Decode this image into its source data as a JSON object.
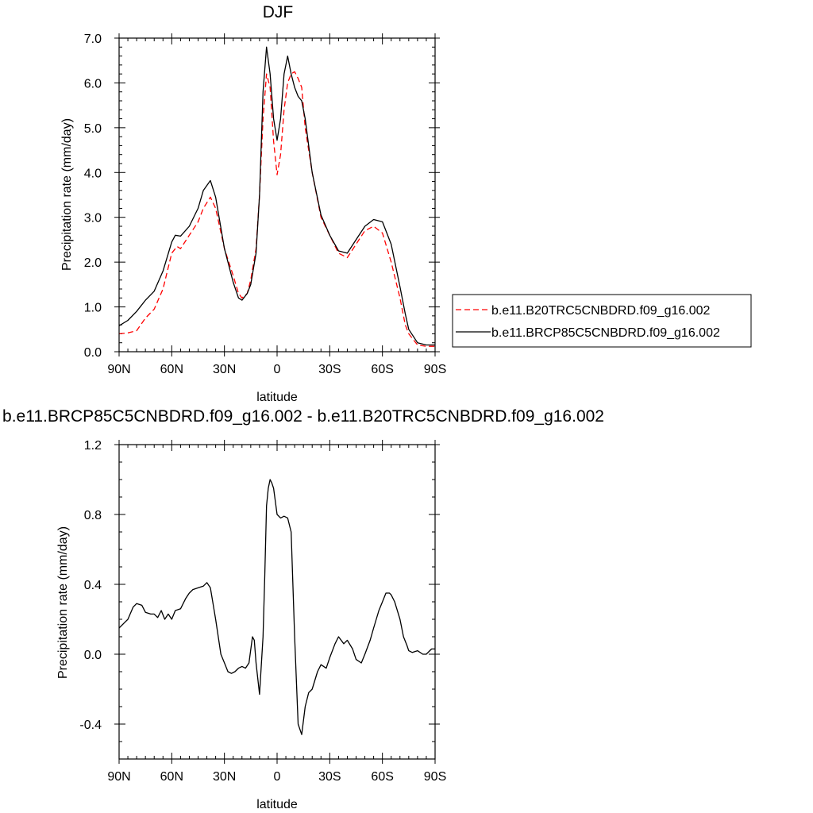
{
  "chart_data": [
    {
      "type": "line",
      "title": "DJF",
      "xlabel": "latitude",
      "ylabel": "Precipitation rate (mm/day)",
      "xlim": [
        90,
        -90
      ],
      "ylim": [
        0,
        7
      ],
      "x_ticks": [
        {
          "value": 90,
          "label": "90N"
        },
        {
          "value": 60,
          "label": "60N"
        },
        {
          "value": 30,
          "label": "30N"
        },
        {
          "value": 0,
          "label": "0"
        },
        {
          "value": -30,
          "label": "30S"
        },
        {
          "value": -60,
          "label": "60S"
        },
        {
          "value": -90,
          "label": "90S"
        }
      ],
      "y_ticks": [
        {
          "value": 0,
          "label": "0.0"
        },
        {
          "value": 1,
          "label": "1.0"
        },
        {
          "value": 2,
          "label": "2.0"
        },
        {
          "value": 3,
          "label": "3.0"
        },
        {
          "value": 4,
          "label": "4.0"
        },
        {
          "value": 5,
          "label": "5.0"
        },
        {
          "value": 6,
          "label": "6.0"
        },
        {
          "value": 7,
          "label": "7.0"
        }
      ],
      "grid": false,
      "legend_position": "right",
      "series": [
        {
          "name": "b.e11.B20TRC5CNBDRD.f09_g16.002",
          "color": "#ff0000",
          "dash": true,
          "x": [
            90,
            85,
            80,
            75,
            70,
            65,
            60,
            57,
            55,
            50,
            45,
            42,
            38,
            35,
            30,
            25,
            22,
            20,
            17,
            15,
            12,
            10,
            8,
            6,
            4,
            2,
            0,
            -2,
            -4,
            -6,
            -8,
            -10,
            -12,
            -14,
            -16,
            -18,
            -20,
            -25,
            -30,
            -35,
            -40,
            -45,
            -50,
            -55,
            -60,
            -65,
            -70,
            -73,
            -75,
            -80,
            -85,
            -90
          ],
          "y": [
            0.4,
            0.42,
            0.47,
            0.75,
            0.95,
            1.4,
            2.2,
            2.35,
            2.3,
            2.6,
            2.9,
            3.2,
            3.45,
            3.2,
            2.3,
            1.7,
            1.3,
            1.2,
            1.3,
            1.6,
            2.3,
            3.5,
            5.2,
            6.2,
            5.9,
            4.7,
            3.95,
            4.4,
            5.4,
            6.0,
            6.2,
            6.25,
            6.1,
            5.9,
            5.0,
            4.5,
            4.0,
            3.0,
            2.6,
            2.2,
            2.1,
            2.4,
            2.7,
            2.8,
            2.65,
            2.0,
            1.2,
            0.6,
            0.4,
            0.15,
            0.12,
            0.12
          ]
        },
        {
          "name": "b.e11.BRCP85C5CNBDRD.f09_g16.002",
          "color": "#000000",
          "dash": false,
          "x": [
            90,
            85,
            80,
            75,
            70,
            65,
            60,
            58,
            55,
            50,
            45,
            42,
            38,
            35,
            30,
            25,
            22,
            20,
            17,
            15,
            12,
            10,
            8,
            6,
            4,
            2,
            0,
            -2,
            -4,
            -6,
            -8,
            -10,
            -12,
            -14,
            -16,
            -18,
            -20,
            -25,
            -30,
            -35,
            -40,
            -45,
            -50,
            -55,
            -60,
            -65,
            -70,
            -73,
            -75,
            -80,
            -85,
            -90
          ],
          "y": [
            0.58,
            0.7,
            0.9,
            1.15,
            1.35,
            1.8,
            2.45,
            2.6,
            2.58,
            2.8,
            3.2,
            3.6,
            3.82,
            3.45,
            2.3,
            1.55,
            1.2,
            1.15,
            1.3,
            1.5,
            2.2,
            3.5,
            5.8,
            6.8,
            6.2,
            5.2,
            4.72,
            5.2,
            6.2,
            6.6,
            6.2,
            5.9,
            5.7,
            5.6,
            5.2,
            4.6,
            4.0,
            3.05,
            2.6,
            2.25,
            2.2,
            2.5,
            2.8,
            2.95,
            2.9,
            2.4,
            1.45,
            0.85,
            0.5,
            0.2,
            0.15,
            0.15
          ]
        }
      ]
    },
    {
      "type": "line",
      "title": "b.e11.BRCP85C5CNBDRD.f09_g16.002 - b.e11.B20TRC5CNBDRD.f09_g16.002",
      "xlabel": "latitude",
      "ylabel": "Precipitation rate (mm/day)",
      "xlim": [
        90,
        -90
      ],
      "ylim": [
        -0.6,
        1.2
      ],
      "x_ticks": [
        {
          "value": 90,
          "label": "90N"
        },
        {
          "value": 60,
          "label": "60N"
        },
        {
          "value": 30,
          "label": "30N"
        },
        {
          "value": 0,
          "label": "0"
        },
        {
          "value": -30,
          "label": "30S"
        },
        {
          "value": -60,
          "label": "60S"
        },
        {
          "value": -90,
          "label": "90S"
        }
      ],
      "y_ticks": [
        {
          "value": -0.4,
          "label": "-0.4"
        },
        {
          "value": 0.0,
          "label": "0.0"
        },
        {
          "value": 0.4,
          "label": "0.4"
        },
        {
          "value": 0.8,
          "label": "0.8"
        },
        {
          "value": 1.2,
          "label": "1.2"
        }
      ],
      "grid": false,
      "series": [
        {
          "color": "#000000",
          "dash": false,
          "x": [
            90,
            87,
            85,
            82,
            80,
            77,
            75,
            72,
            70,
            68,
            66,
            64,
            62,
            60,
            58,
            55,
            52,
            50,
            48,
            45,
            42,
            40,
            38,
            35,
            32,
            30,
            28,
            26,
            24,
            22,
            20,
            18,
            16,
            14,
            13,
            12,
            10,
            8,
            7,
            6,
            5,
            4,
            3,
            2,
            0,
            -2,
            -4,
            -6,
            -8,
            -10,
            -12,
            -14,
            -16,
            -18,
            -20,
            -23,
            -25,
            -28,
            -30,
            -33,
            -35,
            -38,
            -40,
            -43,
            -45,
            -48,
            -50,
            -53,
            -55,
            -58,
            -60,
            -62,
            -64,
            -65,
            -67,
            -70,
            -72,
            -74,
            -75,
            -77,
            -80,
            -83,
            -85,
            -88,
            -90
          ],
          "y": [
            0.15,
            0.18,
            0.2,
            0.27,
            0.29,
            0.28,
            0.24,
            0.23,
            0.23,
            0.21,
            0.25,
            0.2,
            0.23,
            0.2,
            0.25,
            0.26,
            0.32,
            0.35,
            0.37,
            0.38,
            0.39,
            0.41,
            0.38,
            0.2,
            0.0,
            -0.05,
            -0.1,
            -0.11,
            -0.1,
            -0.08,
            -0.07,
            -0.08,
            -0.05,
            0.1,
            0.08,
            -0.05,
            -0.23,
            0.1,
            0.45,
            0.85,
            0.95,
            1.0,
            0.98,
            0.95,
            0.8,
            0.78,
            0.79,
            0.78,
            0.7,
            0.1,
            -0.4,
            -0.46,
            -0.3,
            -0.22,
            -0.2,
            -0.1,
            -0.06,
            -0.08,
            -0.02,
            0.06,
            0.1,
            0.06,
            0.08,
            0.03,
            -0.03,
            -0.05,
            0.0,
            0.08,
            0.15,
            0.25,
            0.3,
            0.35,
            0.35,
            0.34,
            0.3,
            0.2,
            0.1,
            0.05,
            0.02,
            0.01,
            0.02,
            0.0,
            0.0,
            0.03,
            0.03
          ]
        }
      ]
    }
  ]
}
